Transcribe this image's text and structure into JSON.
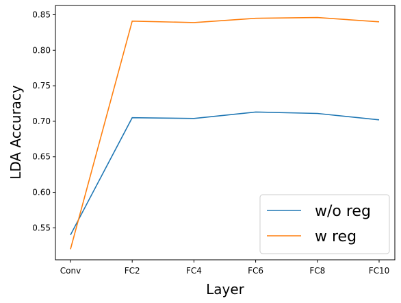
{
  "chart_data": {
    "type": "line",
    "categories": [
      "Conv",
      "FC2",
      "FC4",
      "FC6",
      "FC8",
      "FC10"
    ],
    "series": [
      {
        "name": "w/o reg",
        "color": "#1f77b4",
        "values": [
          0.54,
          0.705,
          0.704,
          0.713,
          0.711,
          0.702
        ]
      },
      {
        "name": "w reg",
        "color": "#ff7f0e",
        "values": [
          0.52,
          0.841,
          0.839,
          0.845,
          0.846,
          0.84
        ]
      }
    ],
    "xlabel": "Layer",
    "ylabel": "LDA Accuracy",
    "ylim": [
      0.505,
      0.863
    ],
    "yticks": [
      "0.55",
      "0.60",
      "0.65",
      "0.70",
      "0.75",
      "0.80",
      "0.85"
    ],
    "grid": false,
    "legend_position": "lower-right"
  }
}
